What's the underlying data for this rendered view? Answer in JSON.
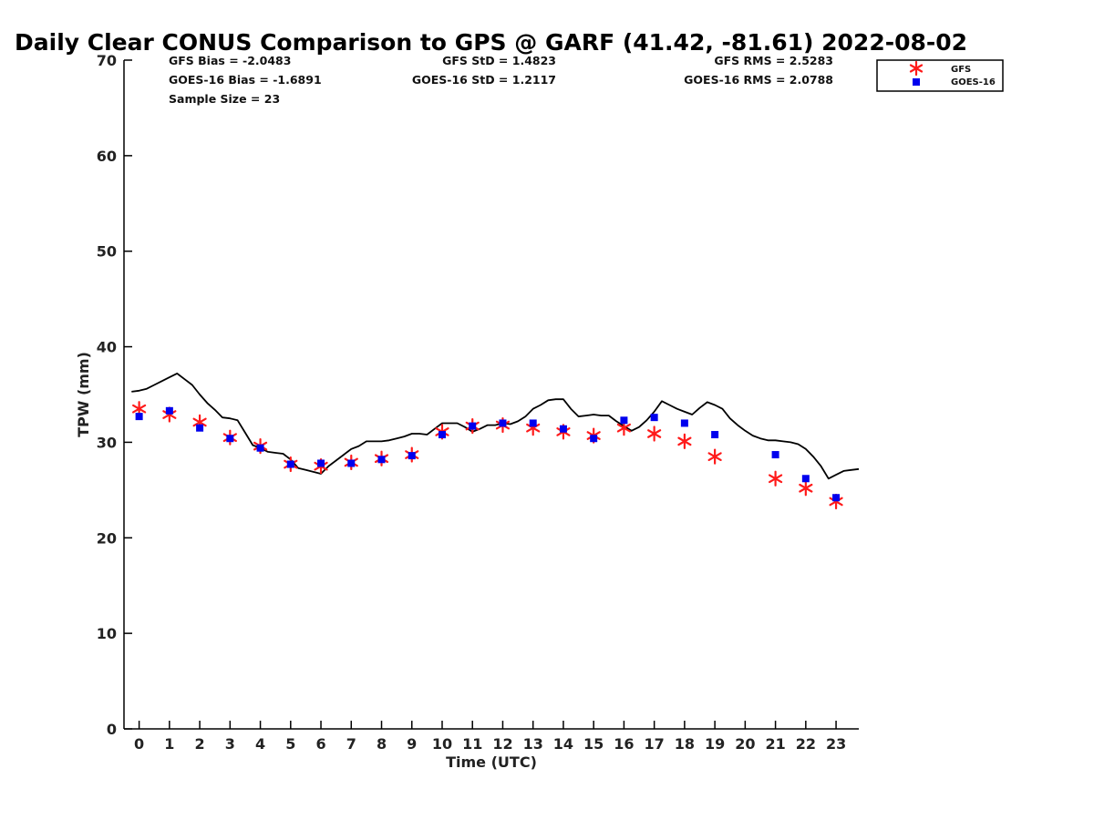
{
  "chart_data": {
    "type": "line",
    "title": "Daily Clear CONUS Comparison to GPS @ GARF (41.42, -81.61) 2022-08-02",
    "xlabel": "Time (UTC)",
    "ylabel": "TPW (mm)",
    "xlim": [
      -0.5,
      23.75
    ],
    "ylim": [
      0,
      70
    ],
    "x_ticks": [
      0,
      1,
      2,
      3,
      4,
      5,
      6,
      7,
      8,
      9,
      10,
      11,
      12,
      13,
      14,
      15,
      16,
      17,
      18,
      19,
      20,
      21,
      22,
      23
    ],
    "y_ticks": [
      0,
      10,
      20,
      30,
      40,
      50,
      60,
      70
    ],
    "grid": false,
    "legend_position": "top-right",
    "stats": {
      "gfs_bias": "GFS Bias = -2.0483",
      "goes_bias": "GOES-16 Bias = -1.6891",
      "sample_size": "Sample Size = 23",
      "gfs_std": "GFS StD = 1.4823",
      "goes_std": "GOES-16 StD = 1.2117",
      "gfs_rms": "GFS RMS = 2.5283",
      "goes_rms": "GOES-16 RMS = 2.0788"
    },
    "series": [
      {
        "kind": "line",
        "color": "#000000",
        "x": [
          -0.25,
          0,
          0.25,
          0.5,
          0.75,
          1,
          1.25,
          1.5,
          1.75,
          2,
          2.25,
          2.5,
          2.75,
          3,
          3.25,
          3.5,
          3.75,
          4,
          4.25,
          4.5,
          4.75,
          5,
          5.25,
          5.5,
          5.75,
          6,
          6.25,
          6.5,
          6.75,
          7,
          7.25,
          7.5,
          7.75,
          8,
          8.25,
          8.5,
          8.75,
          9,
          9.25,
          9.5,
          9.75,
          10,
          10.25,
          10.5,
          10.75,
          11,
          11.25,
          11.5,
          11.75,
          12,
          12.25,
          12.5,
          12.75,
          13,
          13.25,
          13.5,
          13.75,
          14,
          14.25,
          14.5,
          14.75,
          15,
          15.25,
          15.5,
          15.75,
          16,
          16.25,
          16.5,
          16.75,
          17,
          17.25,
          17.5,
          17.75,
          18,
          18.25,
          18.5,
          18.75,
          19,
          19.25,
          19.5,
          19.75,
          20,
          20.25,
          20.5,
          20.75,
          21,
          21.25,
          21.5,
          21.75,
          22,
          22.25,
          22.5,
          22.75,
          23,
          23.25,
          23.5,
          23.75
        ],
        "values": [
          35.3,
          35.4,
          35.6,
          36.0,
          36.4,
          36.8,
          37.2,
          36.6,
          36.0,
          35.0,
          34.1,
          33.4,
          32.6,
          32.5,
          32.3,
          31.0,
          29.7,
          29.4,
          29.0,
          28.9,
          28.8,
          28.2,
          27.3,
          27.1,
          26.9,
          26.7,
          27.5,
          28.1,
          28.7,
          29.3,
          29.6,
          30.1,
          30.1,
          30.1,
          30.2,
          30.4,
          30.6,
          30.9,
          30.9,
          30.8,
          31.4,
          32.0,
          32.0,
          32.0,
          31.6,
          31.1,
          31.4,
          31.8,
          31.8,
          32.0,
          31.9,
          32.2,
          32.7,
          33.5,
          33.9,
          34.4,
          34.5,
          34.5,
          33.5,
          32.7,
          32.8,
          32.9,
          32.8,
          32.8,
          32.2,
          31.7,
          31.2,
          31.6,
          32.3,
          33.2,
          34.3,
          33.9,
          33.5,
          33.2,
          32.9,
          33.6,
          34.2,
          33.9,
          33.5,
          32.5,
          31.8,
          31.2,
          30.7,
          30.4,
          30.2,
          30.2,
          30.1,
          30.0,
          29.8,
          29.3,
          28.5,
          27.5,
          26.2,
          26.6,
          27.0,
          27.1,
          27.2
        ]
      },
      {
        "kind": "scatter",
        "marker": "asterisk",
        "name": "GFS",
        "color": "#ff1a1a",
        "x": [
          0,
          1,
          2,
          3,
          4,
          5,
          6,
          7,
          8,
          9,
          10,
          11,
          12,
          13,
          14,
          15,
          16,
          17,
          18,
          19,
          21,
          22,
          23
        ],
        "values": [
          33.5,
          32.9,
          32.1,
          30.5,
          29.6,
          27.7,
          27.5,
          27.9,
          28.3,
          28.7,
          31.1,
          31.7,
          31.8,
          31.5,
          31.1,
          30.7,
          31.5,
          30.9,
          30.1,
          28.5,
          26.2,
          25.2,
          23.8
        ]
      },
      {
        "kind": "scatter",
        "marker": "square",
        "name": "GOES-16",
        "color": "#0000ee",
        "x": [
          0,
          1,
          2,
          3,
          4,
          5,
          6,
          7,
          8,
          9,
          10,
          11,
          12,
          13,
          14,
          15,
          16,
          17,
          18,
          19,
          21,
          22,
          23
        ],
        "values": [
          32.7,
          33.3,
          31.5,
          30.4,
          29.4,
          27.7,
          27.8,
          27.8,
          28.2,
          28.6,
          30.8,
          31.7,
          32.0,
          32.0,
          31.4,
          30.4,
          32.3,
          32.6,
          32.0,
          30.8,
          28.7,
          26.2,
          24.2
        ]
      }
    ]
  }
}
